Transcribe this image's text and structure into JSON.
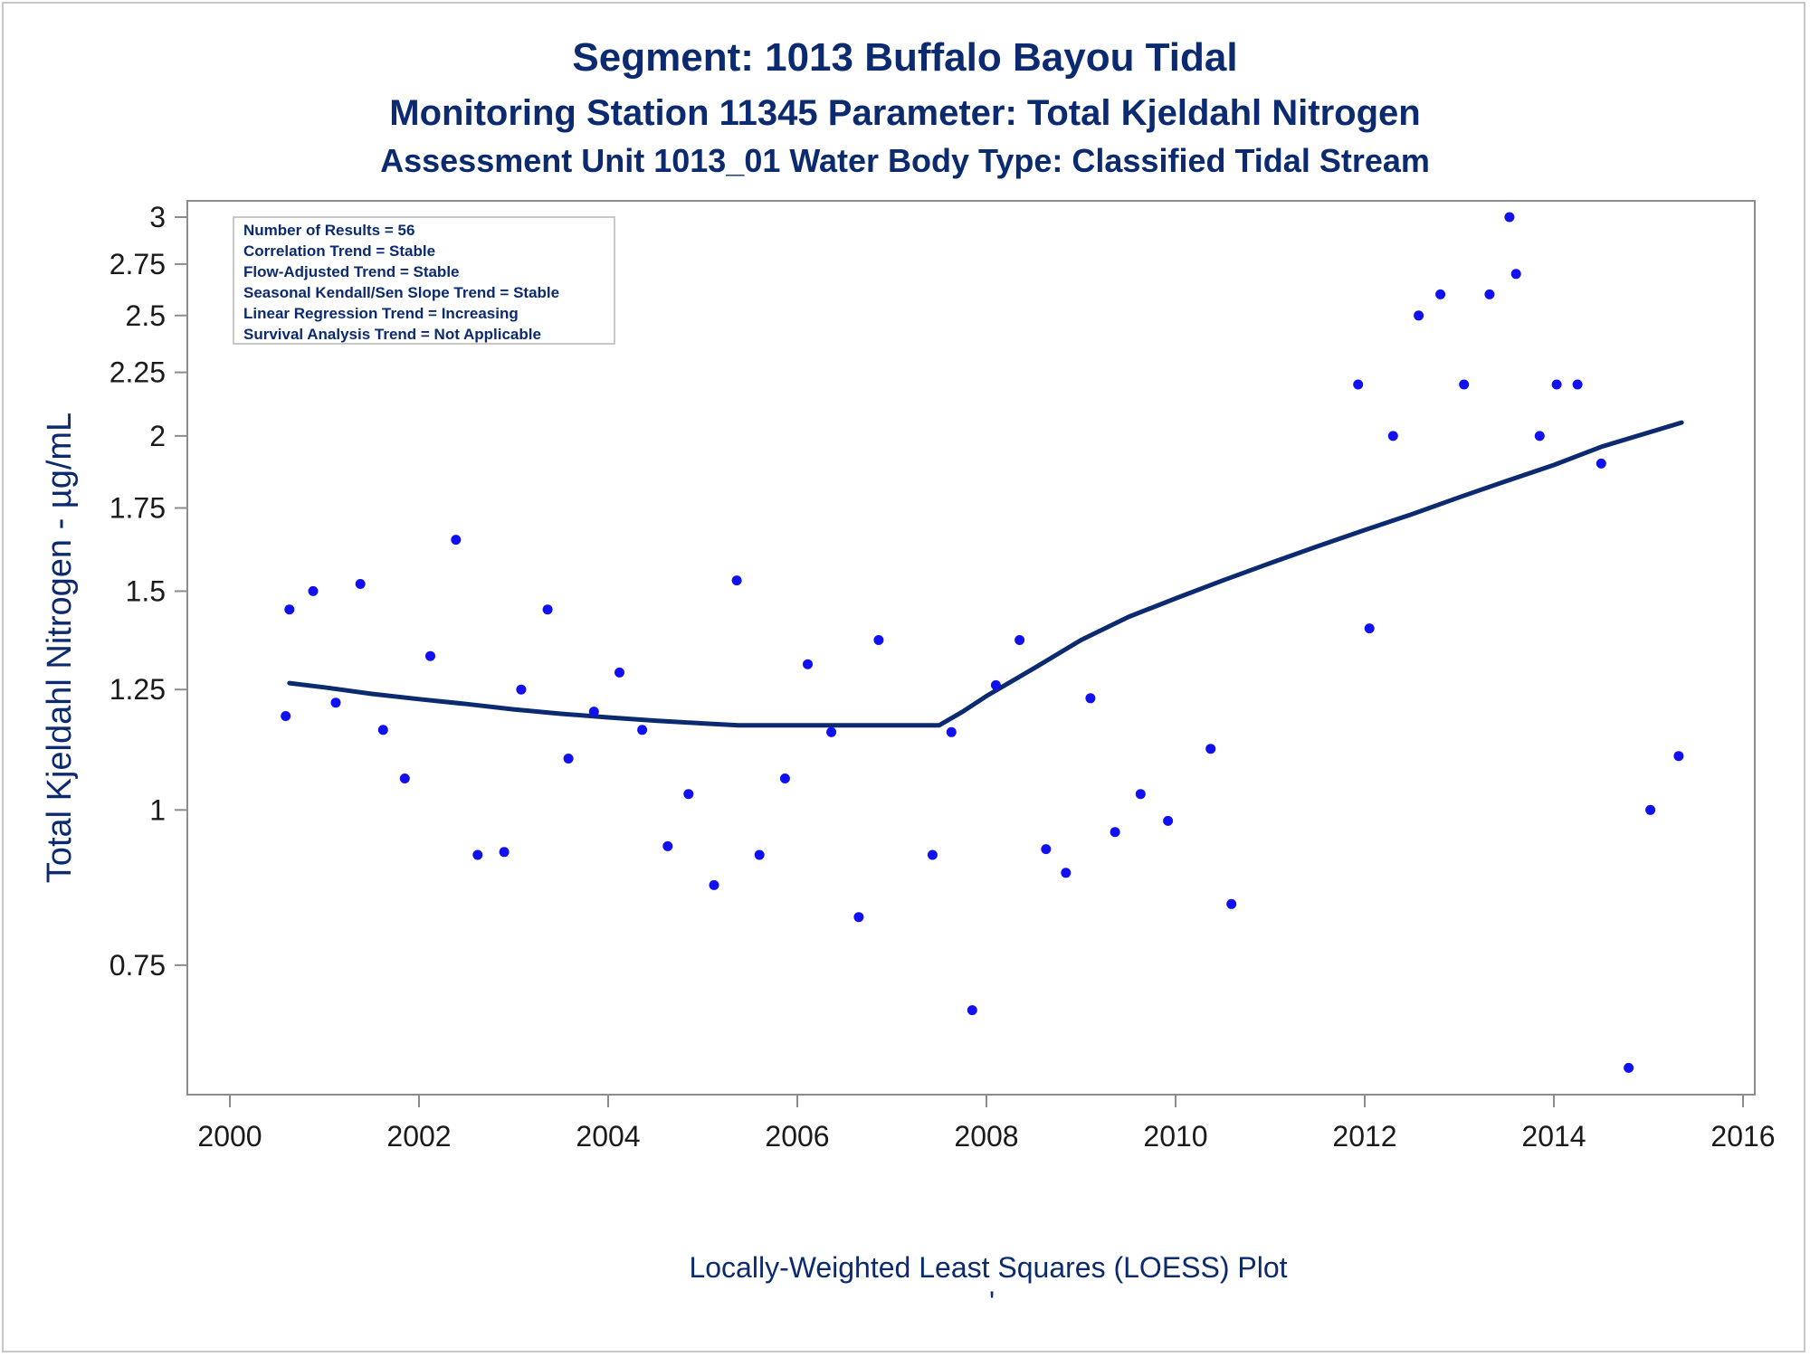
{
  "chart_data": {
    "type": "scatter",
    "title": "Segment: 1013  Buffalo Bayou Tidal",
    "subtitle": "Monitoring Station 11345 Parameter: Total Kjeldahl Nitrogen",
    "subtitle2": "Assessment Unit 1013_01   Water Body Type: Classified Tidal Stream",
    "ylabel": "Total Kjeldahl Nitrogen -  µg/mL",
    "footnote": "Locally-Weighted Least Squares (LOESS) Plot",
    "footnote_mark": "'",
    "xlim": [
      2000,
      2016
    ],
    "ylim": [
      0.6,
      3.0
    ],
    "y_scale": "log",
    "grid": false,
    "x_ticks": [
      "2000",
      "2002",
      "2004",
      "2006",
      "2008",
      "2010",
      "2012",
      "2014",
      "2016"
    ],
    "y_ticks": [
      "0.75",
      "1",
      "1.25",
      "1.5",
      "1.75",
      "2",
      "2.25",
      "2.5",
      "2.75",
      "3"
    ],
    "point_color": "#1010f0",
    "line_color": "#0b2a6f",
    "stats_box": [
      "Number of Results = 56",
      "Correlation Trend = Stable",
      "Flow-Adjusted Trend = Stable",
      "Seasonal Kendall/Sen Slope Trend = Stable",
      "Linear Regression Trend = Increasing",
      "Survival Analysis Trend = Not Applicable"
    ],
    "points": [
      [
        2000.59,
        1.19
      ],
      [
        2000.63,
        1.45
      ],
      [
        2000.88,
        1.5
      ],
      [
        2001.12,
        1.22
      ],
      [
        2001.38,
        1.52
      ],
      [
        2001.62,
        1.16
      ],
      [
        2001.85,
        1.06
      ],
      [
        2002.12,
        1.33
      ],
      [
        2002.39,
        1.65
      ],
      [
        2002.62,
        0.92
      ],
      [
        2002.9,
        0.925
      ],
      [
        2003.08,
        1.25
      ],
      [
        2003.36,
        1.45
      ],
      [
        2003.58,
        1.1
      ],
      [
        2003.85,
        1.2
      ],
      [
        2004.12,
        1.29
      ],
      [
        2004.36,
        1.16
      ],
      [
        2004.63,
        0.935
      ],
      [
        2004.85,
        1.03
      ],
      [
        2005.12,
        0.87
      ],
      [
        2005.36,
        1.53
      ],
      [
        2005.6,
        0.92
      ],
      [
        2005.87,
        1.06
      ],
      [
        2006.11,
        1.31
      ],
      [
        2006.36,
        1.155
      ],
      [
        2006.65,
        0.82
      ],
      [
        2006.86,
        1.37
      ],
      [
        2007.43,
        0.92
      ],
      [
        2007.63,
        1.155
      ],
      [
        2007.85,
        0.69
      ],
      [
        2008.1,
        1.26
      ],
      [
        2008.35,
        1.37
      ],
      [
        2008.63,
        0.93
      ],
      [
        2008.84,
        0.89
      ],
      [
        2009.1,
        1.23
      ],
      [
        2009.36,
        0.96
      ],
      [
        2009.63,
        1.03
      ],
      [
        2009.92,
        0.98
      ],
      [
        2010.37,
        1.12
      ],
      [
        2010.59,
        0.84
      ],
      [
        2011.93,
        2.2
      ],
      [
        2012.05,
        1.4
      ],
      [
        2012.3,
        2.0
      ],
      [
        2012.57,
        2.5
      ],
      [
        2012.8,
        2.6
      ],
      [
        2013.05,
        2.2
      ],
      [
        2013.32,
        2.6
      ],
      [
        2013.53,
        3.0
      ],
      [
        2013.6,
        2.7
      ],
      [
        2013.85,
        2.0
      ],
      [
        2014.03,
        2.2
      ],
      [
        2014.25,
        2.2
      ],
      [
        2014.5,
        1.9
      ],
      [
        2014.79,
        0.62
      ],
      [
        2015.02,
        1.0
      ],
      [
        2015.32,
        1.105
      ]
    ],
    "loess": [
      [
        2000.63,
        1.265
      ],
      [
        2001.0,
        1.255
      ],
      [
        2001.5,
        1.24
      ],
      [
        2002.0,
        1.228
      ],
      [
        2002.5,
        1.217
      ],
      [
        2003.0,
        1.205
      ],
      [
        2003.5,
        1.195
      ],
      [
        2004.0,
        1.187
      ],
      [
        2004.5,
        1.18
      ],
      [
        2005.0,
        1.174
      ],
      [
        2005.38,
        1.17
      ],
      [
        2006.0,
        1.17
      ],
      [
        2006.5,
        1.17
      ],
      [
        2007.0,
        1.17
      ],
      [
        2007.5,
        1.17
      ],
      [
        2007.75,
        1.2
      ],
      [
        2008.0,
        1.235
      ],
      [
        2008.5,
        1.3
      ],
      [
        2009.0,
        1.37
      ],
      [
        2009.5,
        1.43
      ],
      [
        2010.0,
        1.48
      ],
      [
        2010.5,
        1.53
      ],
      [
        2011.0,
        1.58
      ],
      [
        2011.5,
        1.63
      ],
      [
        2012.0,
        1.68
      ],
      [
        2012.5,
        1.73
      ],
      [
        2013.0,
        1.785
      ],
      [
        2013.5,
        1.84
      ],
      [
        2014.0,
        1.895
      ],
      [
        2014.5,
        1.96
      ],
      [
        2015.35,
        2.05
      ]
    ]
  }
}
